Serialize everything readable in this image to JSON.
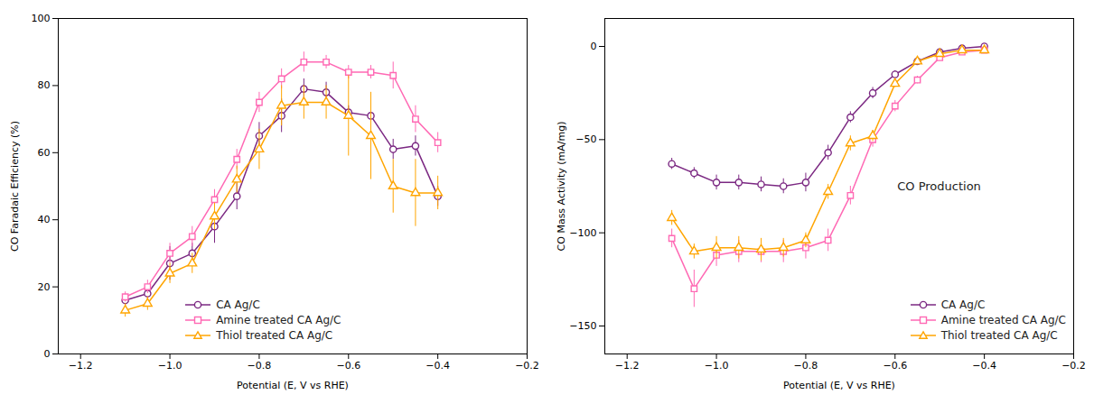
{
  "chart_data": [
    {
      "type": "line",
      "xlabel": "Potential (E, V vs RHE)",
      "ylabel": "CO Faradaic Efficiency (%)",
      "xlim": [
        -1.25,
        -0.2
      ],
      "ylim": [
        0,
        100
      ],
      "xticks": [
        {
          "value": -1.2,
          "label": "−1.2"
        },
        {
          "value": -1.0,
          "label": "−1.0"
        },
        {
          "value": -0.8,
          "label": "−0.8"
        },
        {
          "value": -0.6,
          "label": "−0.6"
        },
        {
          "value": -0.4,
          "label": "−0.4"
        },
        {
          "value": -0.2,
          "label": "−0.2"
        }
      ],
      "yticks": [
        0,
        20,
        40,
        60,
        80,
        100
      ],
      "legend": "lower left",
      "x": [
        -1.1,
        -1.05,
        -1.0,
        -0.95,
        -0.9,
        -0.85,
        -0.8,
        -0.75,
        -0.7,
        -0.65,
        -0.6,
        -0.55,
        -0.5,
        -0.45,
        -0.4
      ],
      "series": [
        {
          "name": "CA Ag/C",
          "color": "#7B2882",
          "marker": "circle",
          "values": [
            16,
            18,
            27,
            30,
            38,
            47,
            65,
            71,
            79,
            78,
            72,
            71,
            61,
            62,
            47
          ],
          "yerr": [
            1.5,
            2,
            5,
            3,
            5,
            4,
            4,
            5,
            3,
            3,
            2,
            4,
            3,
            3,
            3
          ]
        },
        {
          "name": "Amine treated CA Ag/C",
          "color": "#FF69B4",
          "marker": "square",
          "values": [
            17,
            20,
            30,
            35,
            46,
            58,
            75,
            82,
            87,
            87,
            84,
            84,
            83,
            70,
            63
          ],
          "yerr": [
            1.5,
            2,
            3,
            3,
            3,
            3,
            3,
            3,
            3,
            2,
            2,
            2,
            4,
            4,
            3
          ]
        },
        {
          "name": "Thiol treated CA Ag/C",
          "color": "#FFA500",
          "marker": "triangle",
          "values": [
            13,
            15,
            24,
            27,
            41,
            52,
            61,
            74,
            75,
            75,
            71,
            65,
            50,
            48,
            48
          ],
          "yerr": [
            2,
            2,
            3,
            3,
            4,
            4,
            6,
            6,
            5,
            5,
            12,
            13,
            8,
            10,
            5
          ]
        }
      ]
    },
    {
      "type": "line",
      "xlabel": "Potential (E, V vs RHE)",
      "ylabel": "CO Mass Activity (mA/mg)",
      "xlim": [
        -1.25,
        -0.2
      ],
      "ylim": [
        -165,
        15
      ],
      "xticks": [
        {
          "value": -1.2,
          "label": "−1.2"
        },
        {
          "value": -1.0,
          "label": "−1.0"
        },
        {
          "value": -0.8,
          "label": "−0.8"
        },
        {
          "value": -0.6,
          "label": "−0.6"
        },
        {
          "value": -0.4,
          "label": "−0.4"
        },
        {
          "value": -0.2,
          "label": "−0.2"
        }
      ],
      "yticks": [
        0,
        -50,
        -100,
        -150
      ],
      "legend": "lower right",
      "annotations": [
        {
          "text": "CO Production",
          "x": -0.595,
          "y": -75
        }
      ],
      "x": [
        -1.1,
        -1.05,
        -1.0,
        -0.95,
        -0.9,
        -0.85,
        -0.8,
        -0.75,
        -0.7,
        -0.65,
        -0.6,
        -0.55,
        -0.5,
        -0.45,
        -0.4
      ],
      "series": [
        {
          "name": "CA Ag/C",
          "color": "#7B2882",
          "marker": "circle",
          "values": [
            -63,
            -68,
            -73,
            -73,
            -74,
            -75,
            -73,
            -57,
            -38,
            -25,
            -15,
            -8,
            -3,
            -1,
            0
          ],
          "yerr": [
            3,
            3,
            4,
            4,
            4,
            4,
            5,
            4,
            3,
            3,
            2,
            1,
            1,
            1,
            0.5
          ]
        },
        {
          "name": "Amine treated CA Ag/C",
          "color": "#FF69B4",
          "marker": "square",
          "values": [
            -103,
            -130,
            -112,
            -110,
            -110,
            -110,
            -108,
            -104,
            -80,
            -50,
            -32,
            -18,
            -6,
            -3,
            -2
          ],
          "yerr": [
            5,
            10,
            6,
            6,
            6,
            6,
            6,
            6,
            5,
            4,
            3,
            2,
            1,
            1,
            1
          ]
        },
        {
          "name": "Thiol treated CA Ag/C",
          "color": "#FFA500",
          "marker": "triangle",
          "values": [
            -92,
            -110,
            -108,
            -108,
            -109,
            -108,
            -104,
            -78,
            -52,
            -48,
            -20,
            -8,
            -4,
            -2,
            -2
          ],
          "yerr": [
            4,
            4,
            6,
            6,
            6,
            5,
            4,
            4,
            4,
            3,
            2,
            1,
            1,
            1,
            1
          ]
        }
      ]
    }
  ]
}
